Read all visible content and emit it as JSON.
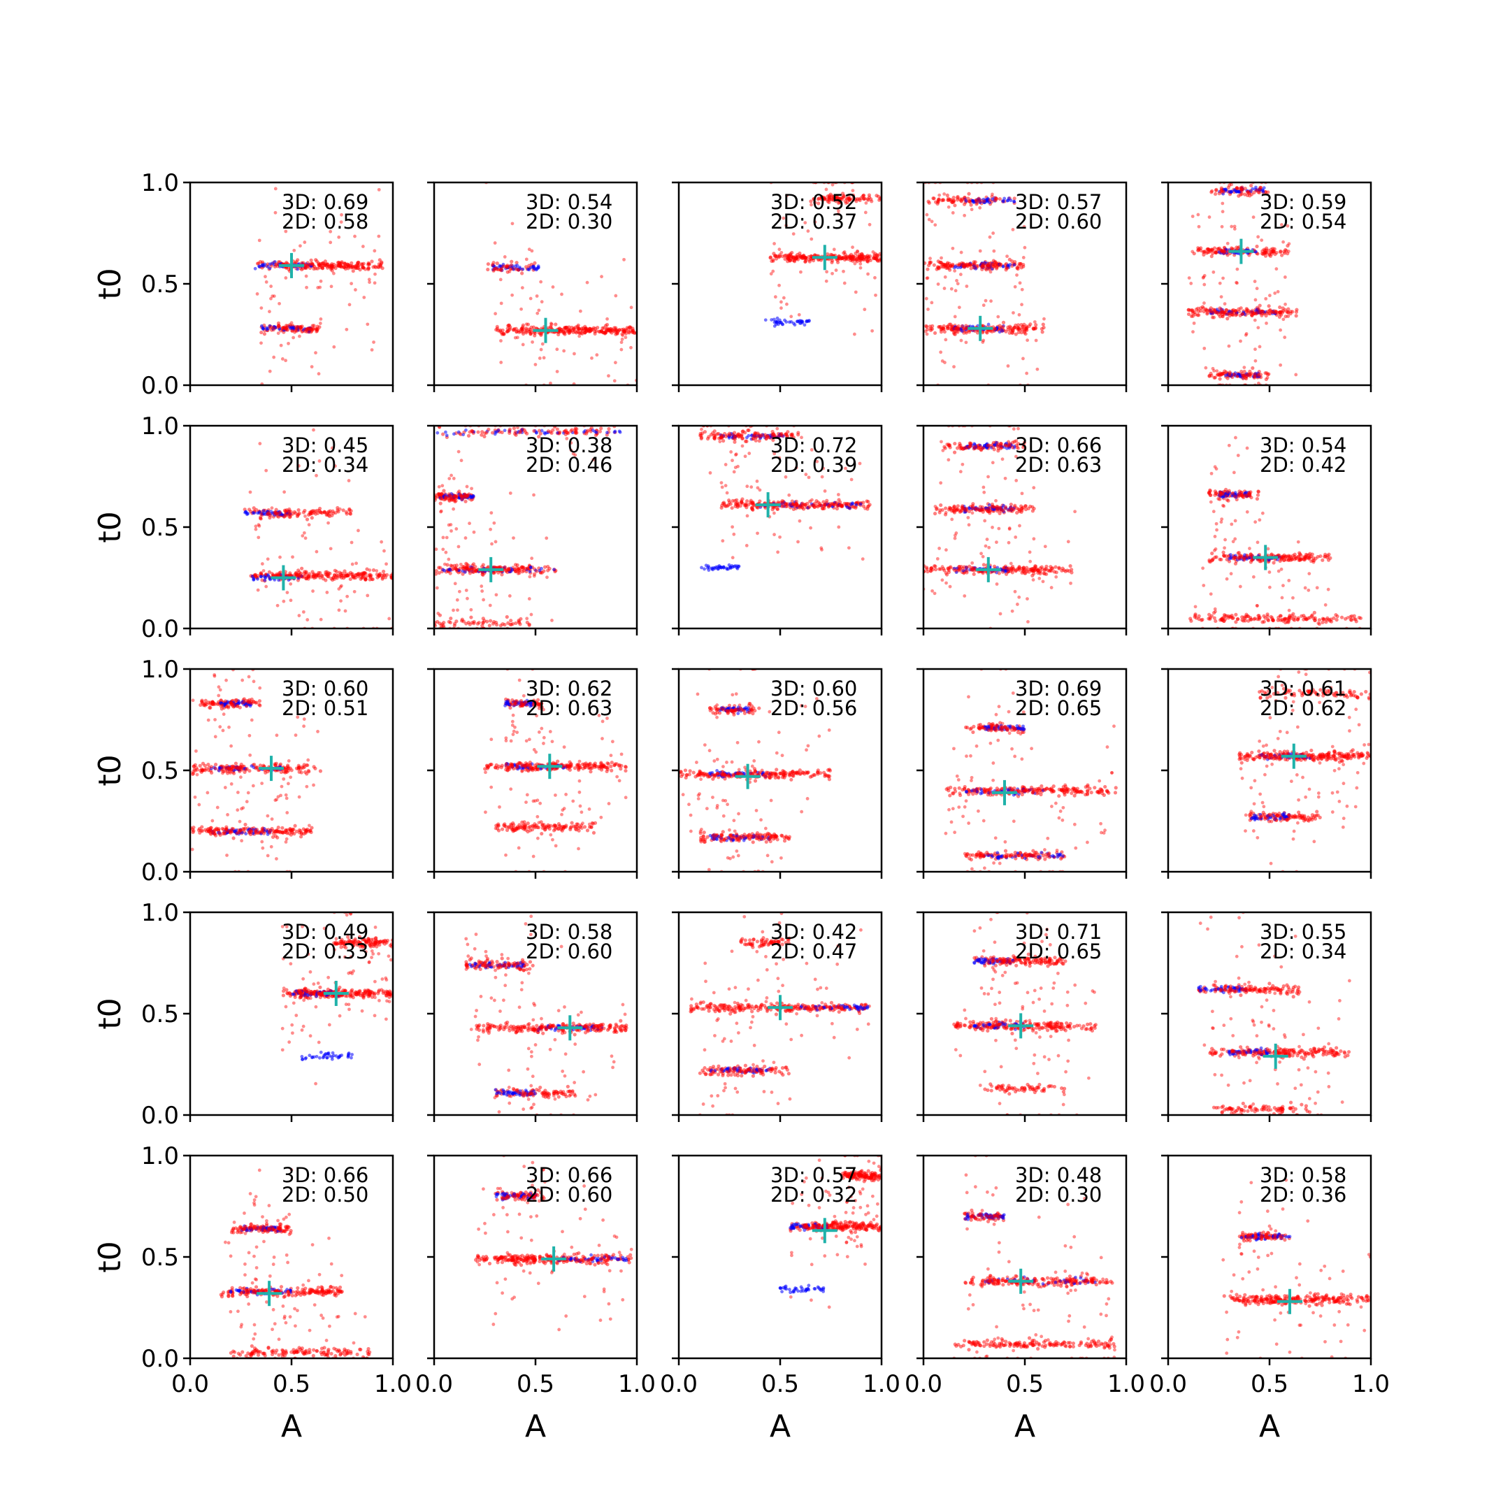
{
  "chart_data": {
    "type": "scatter",
    "layout": "5x5 grid of scatter panels",
    "xlabel": "A",
    "ylabel": "t0",
    "xlim": [
      0,
      1
    ],
    "ylim": [
      0,
      1
    ],
    "x_ticks": [
      "0.0",
      "0.5",
      "1.0"
    ],
    "y_ticks": [
      "0.0",
      "0.5",
      "1.0"
    ],
    "colors": {
      "samples_3d": "#ff0000",
      "samples_2d": "#0000ff",
      "true_marker": "#20b2aa"
    },
    "marker_glyph": "+",
    "panels": [
      {
        "label_3d": "3D: 0.69",
        "label_2d": "2D: 0.58",
        "true": [
          0.5,
          0.59
        ],
        "blobs": [
          {
            "t0": 0.59,
            "a_lo": 0.33,
            "a_hi": 0.95,
            "n": 140
          },
          {
            "t0": 0.28,
            "a_lo": 0.35,
            "a_hi": 0.65,
            "n": 60
          }
        ],
        "blue_blobs": [
          {
            "t0": 0.59,
            "a_lo": 0.32,
            "a_hi": 0.6
          },
          {
            "t0": 0.28,
            "a_lo": 0.35,
            "a_hi": 0.6
          }
        ]
      },
      {
        "label_3d": "3D: 0.54",
        "label_2d": "2D: 0.30",
        "true": [
          0.55,
          0.27
        ],
        "blobs": [
          {
            "t0": 0.27,
            "a_lo": 0.3,
            "a_hi": 1.0,
            "n": 170
          },
          {
            "t0": 0.58,
            "a_lo": 0.25,
            "a_hi": 0.5,
            "n": 30
          }
        ],
        "blue_blobs": [
          {
            "t0": 0.58,
            "a_lo": 0.28,
            "a_hi": 0.52
          }
        ]
      },
      {
        "label_3d": "3D: 0.52",
        "label_2d": "2D: 0.37",
        "true": [
          0.72,
          0.63
        ],
        "blobs": [
          {
            "t0": 0.63,
            "a_lo": 0.45,
            "a_hi": 1.0,
            "n": 150
          },
          {
            "t0": 0.92,
            "a_lo": 0.65,
            "a_hi": 1.0,
            "n": 60
          }
        ],
        "blue_blobs": [
          {
            "t0": 0.31,
            "a_lo": 0.42,
            "a_hi": 0.65
          }
        ]
      },
      {
        "label_3d": "3D: 0.57",
        "label_2d": "2D: 0.60",
        "true": [
          0.28,
          0.28
        ],
        "blobs": [
          {
            "t0": 0.28,
            "a_lo": 0.0,
            "a_hi": 0.6,
            "n": 110
          },
          {
            "t0": 0.59,
            "a_lo": 0.0,
            "a_hi": 0.5,
            "n": 100
          },
          {
            "t0": 0.91,
            "a_lo": 0.0,
            "a_hi": 0.45,
            "n": 50
          }
        ],
        "blue_blobs": [
          {
            "t0": 0.28,
            "a_lo": 0.15,
            "a_hi": 0.4
          },
          {
            "t0": 0.59,
            "a_lo": 0.15,
            "a_hi": 0.45
          },
          {
            "t0": 0.91,
            "a_lo": 0.2,
            "a_hi": 0.45
          }
        ]
      },
      {
        "label_3d": "3D: 0.59",
        "label_2d": "2D: 0.54",
        "true": [
          0.36,
          0.66
        ],
        "blobs": [
          {
            "t0": 0.66,
            "a_lo": 0.1,
            "a_hi": 0.6,
            "n": 80
          },
          {
            "t0": 0.36,
            "a_lo": 0.1,
            "a_hi": 0.65,
            "n": 110
          },
          {
            "t0": 0.05,
            "a_lo": 0.2,
            "a_hi": 0.5,
            "n": 50
          },
          {
            "t0": 0.96,
            "a_lo": 0.2,
            "a_hi": 0.5,
            "n": 40
          }
        ],
        "blue_blobs": [
          {
            "t0": 0.66,
            "a_lo": 0.25,
            "a_hi": 0.45
          },
          {
            "t0": 0.36,
            "a_lo": 0.2,
            "a_hi": 0.55
          },
          {
            "t0": 0.96,
            "a_lo": 0.25,
            "a_hi": 0.48
          },
          {
            "t0": 0.05,
            "a_lo": 0.28,
            "a_hi": 0.45
          }
        ]
      },
      {
        "label_3d": "3D: 0.45",
        "label_2d": "2D: 0.34",
        "true": [
          0.46,
          0.25
        ],
        "blobs": [
          {
            "t0": 0.26,
            "a_lo": 0.3,
            "a_hi": 1.0,
            "n": 150
          },
          {
            "t0": 0.57,
            "a_lo": 0.25,
            "a_hi": 0.8,
            "n": 80
          }
        ],
        "blue_blobs": [
          {
            "t0": 0.57,
            "a_lo": 0.25,
            "a_hi": 0.5
          },
          {
            "t0": 0.25,
            "a_lo": 0.3,
            "a_hi": 0.55
          }
        ]
      },
      {
        "label_3d": "3D: 0.38",
        "label_2d": "2D: 0.46",
        "true": [
          0.28,
          0.29
        ],
        "blobs": [
          {
            "t0": 0.29,
            "a_lo": 0.0,
            "a_hi": 0.6,
            "n": 120
          },
          {
            "t0": 0.65,
            "a_lo": 0.0,
            "a_hi": 0.2,
            "n": 60
          },
          {
            "t0": 0.97,
            "a_lo": 0.0,
            "a_hi": 0.9,
            "n": 60
          },
          {
            "t0": 0.03,
            "a_lo": 0.0,
            "a_hi": 0.5,
            "n": 40
          }
        ],
        "blue_blobs": [
          {
            "t0": 0.29,
            "a_lo": 0.0,
            "a_hi": 0.6
          },
          {
            "t0": 0.97,
            "a_lo": 0.0,
            "a_hi": 0.95
          },
          {
            "t0": 0.65,
            "a_lo": 0.02,
            "a_hi": 0.2
          }
        ]
      },
      {
        "label_3d": "3D: 0.72",
        "label_2d": "2D: 0.39",
        "true": [
          0.44,
          0.61
        ],
        "blobs": [
          {
            "t0": 0.61,
            "a_lo": 0.2,
            "a_hi": 0.95,
            "n": 150
          },
          {
            "t0": 0.95,
            "a_lo": 0.1,
            "a_hi": 0.6,
            "n": 80
          }
        ],
        "blue_blobs": [
          {
            "t0": 0.3,
            "a_lo": 0.1,
            "a_hi": 0.3
          },
          {
            "t0": 0.95,
            "a_lo": 0.2,
            "a_hi": 0.55
          },
          {
            "t0": 0.61,
            "a_lo": 0.4,
            "a_hi": 0.9
          }
        ]
      },
      {
        "label_3d": "3D: 0.66",
        "label_2d": "2D: 0.63",
        "true": [
          0.32,
          0.29
        ],
        "blobs": [
          {
            "t0": 0.29,
            "a_lo": 0.0,
            "a_hi": 0.75,
            "n": 120
          },
          {
            "t0": 0.59,
            "a_lo": 0.05,
            "a_hi": 0.55,
            "n": 90
          },
          {
            "t0": 0.9,
            "a_lo": 0.1,
            "a_hi": 0.5,
            "n": 60
          }
        ],
        "blue_blobs": [
          {
            "t0": 0.29,
            "a_lo": 0.15,
            "a_hi": 0.45
          },
          {
            "t0": 0.59,
            "a_lo": 0.2,
            "a_hi": 0.45
          },
          {
            "t0": 0.9,
            "a_lo": 0.2,
            "a_hi": 0.45
          }
        ]
      },
      {
        "label_3d": "3D: 0.54",
        "label_2d": "2D: 0.42",
        "true": [
          0.48,
          0.35
        ],
        "blobs": [
          {
            "t0": 0.35,
            "a_lo": 0.2,
            "a_hi": 0.8,
            "n": 110
          },
          {
            "t0": 0.05,
            "a_lo": 0.1,
            "a_hi": 0.95,
            "n": 100
          },
          {
            "t0": 0.66,
            "a_lo": 0.2,
            "a_hi": 0.45,
            "n": 50
          }
        ],
        "blue_blobs": [
          {
            "t0": 0.66,
            "a_lo": 0.25,
            "a_hi": 0.4
          },
          {
            "t0": 0.35,
            "a_lo": 0.3,
            "a_hi": 0.55
          }
        ]
      },
      {
        "label_3d": "3D: 0.60",
        "label_2d": "2D: 0.51",
        "true": [
          0.4,
          0.51
        ],
        "blobs": [
          {
            "t0": 0.51,
            "a_lo": 0.0,
            "a_hi": 0.65,
            "n": 110
          },
          {
            "t0": 0.2,
            "a_lo": 0.0,
            "a_hi": 0.6,
            "n": 110
          },
          {
            "t0": 0.83,
            "a_lo": 0.05,
            "a_hi": 0.35,
            "n": 60
          }
        ],
        "blue_blobs": [
          {
            "t0": 0.51,
            "a_lo": 0.1,
            "a_hi": 0.45
          },
          {
            "t0": 0.2,
            "a_lo": 0.1,
            "a_hi": 0.4
          },
          {
            "t0": 0.83,
            "a_lo": 0.15,
            "a_hi": 0.3
          }
        ]
      },
      {
        "label_3d": "3D: 0.62",
        "label_2d": "2D: 0.63",
        "true": [
          0.57,
          0.52
        ],
        "blobs": [
          {
            "t0": 0.52,
            "a_lo": 0.25,
            "a_hi": 0.95,
            "n": 140
          },
          {
            "t0": 0.22,
            "a_lo": 0.3,
            "a_hi": 0.8,
            "n": 80
          },
          {
            "t0": 0.83,
            "a_lo": 0.35,
            "a_hi": 0.55,
            "n": 40
          }
        ],
        "blue_blobs": [
          {
            "t0": 0.52,
            "a_lo": 0.35,
            "a_hi": 0.65
          },
          {
            "t0": 0.83,
            "a_lo": 0.35,
            "a_hi": 0.5
          }
        ]
      },
      {
        "label_3d": "3D: 0.60",
        "label_2d": "2D: 0.56",
        "true": [
          0.34,
          0.47
        ],
        "blobs": [
          {
            "t0": 0.48,
            "a_lo": 0.0,
            "a_hi": 0.75,
            "n": 130
          },
          {
            "t0": 0.17,
            "a_lo": 0.1,
            "a_hi": 0.55,
            "n": 80
          },
          {
            "t0": 0.8,
            "a_lo": 0.15,
            "a_hi": 0.4,
            "n": 40
          }
        ],
        "blue_blobs": [
          {
            "t0": 0.48,
            "a_lo": 0.15,
            "a_hi": 0.45
          },
          {
            "t0": 0.17,
            "a_lo": 0.15,
            "a_hi": 0.45
          },
          {
            "t0": 0.8,
            "a_lo": 0.2,
            "a_hi": 0.35
          }
        ]
      },
      {
        "label_3d": "3D: 0.69",
        "label_2d": "2D: 0.65",
        "true": [
          0.4,
          0.39
        ],
        "blobs": [
          {
            "t0": 0.4,
            "a_lo": 0.1,
            "a_hi": 0.95,
            "n": 130
          },
          {
            "t0": 0.08,
            "a_lo": 0.2,
            "a_hi": 0.7,
            "n": 70
          },
          {
            "t0": 0.71,
            "a_lo": 0.2,
            "a_hi": 0.5,
            "n": 50
          }
        ],
        "blue_blobs": [
          {
            "t0": 0.4,
            "a_lo": 0.2,
            "a_hi": 0.6
          },
          {
            "t0": 0.08,
            "a_lo": 0.3,
            "a_hi": 0.7
          },
          {
            "t0": 0.71,
            "a_lo": 0.3,
            "a_hi": 0.5
          }
        ]
      },
      {
        "label_3d": "3D: 0.61",
        "label_2d": "2D: 0.62",
        "true": [
          0.62,
          0.57
        ],
        "blobs": [
          {
            "t0": 0.57,
            "a_lo": 0.35,
            "a_hi": 1.0,
            "n": 150
          },
          {
            "t0": 0.27,
            "a_lo": 0.4,
            "a_hi": 0.75,
            "n": 60
          },
          {
            "t0": 0.88,
            "a_lo": 0.45,
            "a_hi": 1.0,
            "n": 50
          }
        ],
        "blue_blobs": [
          {
            "t0": 0.27,
            "a_lo": 0.4,
            "a_hi": 0.6
          },
          {
            "t0": 0.57,
            "a_lo": 0.45,
            "a_hi": 0.7
          }
        ]
      },
      {
        "label_3d": "3D: 0.49",
        "label_2d": "2D: 0.33",
        "true": [
          0.72,
          0.6
        ],
        "blobs": [
          {
            "t0": 0.6,
            "a_lo": 0.45,
            "a_hi": 1.0,
            "n": 150
          },
          {
            "t0": 0.85,
            "a_lo": 0.7,
            "a_hi": 1.0,
            "n": 70
          }
        ],
        "blue_blobs": [
          {
            "t0": 0.6,
            "a_lo": 0.5,
            "a_hi": 0.75
          },
          {
            "t0": 0.29,
            "a_lo": 0.55,
            "a_hi": 0.8
          }
        ]
      },
      {
        "label_3d": "3D: 0.58",
        "label_2d": "2D: 0.60",
        "true": [
          0.67,
          0.43
        ],
        "blobs": [
          {
            "t0": 0.43,
            "a_lo": 0.2,
            "a_hi": 0.95,
            "n": 140
          },
          {
            "t0": 0.74,
            "a_lo": 0.15,
            "a_hi": 0.5,
            "n": 60
          },
          {
            "t0": 0.11,
            "a_lo": 0.3,
            "a_hi": 0.7,
            "n": 60
          }
        ],
        "blue_blobs": [
          {
            "t0": 0.74,
            "a_lo": 0.15,
            "a_hi": 0.45
          },
          {
            "t0": 0.43,
            "a_lo": 0.5,
            "a_hi": 0.85
          },
          {
            "t0": 0.11,
            "a_lo": 0.3,
            "a_hi": 0.5
          }
        ]
      },
      {
        "label_3d": "3D: 0.42",
        "label_2d": "2D: 0.47",
        "true": [
          0.5,
          0.53
        ],
        "blobs": [
          {
            "t0": 0.53,
            "a_lo": 0.05,
            "a_hi": 0.95,
            "n": 150
          },
          {
            "t0": 0.22,
            "a_lo": 0.1,
            "a_hi": 0.55,
            "n": 70
          },
          {
            "t0": 0.85,
            "a_lo": 0.3,
            "a_hi": 0.55,
            "n": 40
          }
        ],
        "blue_blobs": [
          {
            "t0": 0.53,
            "a_lo": 0.6,
            "a_hi": 0.95
          },
          {
            "t0": 0.22,
            "a_lo": 0.15,
            "a_hi": 0.45
          }
        ]
      },
      {
        "label_3d": "3D: 0.71",
        "label_2d": "2D: 0.65",
        "true": [
          0.48,
          0.44
        ],
        "blobs": [
          {
            "t0": 0.44,
            "a_lo": 0.15,
            "a_hi": 0.85,
            "n": 130
          },
          {
            "t0": 0.76,
            "a_lo": 0.25,
            "a_hi": 0.7,
            "n": 90
          },
          {
            "t0": 0.13,
            "a_lo": 0.3,
            "a_hi": 0.7,
            "n": 40
          }
        ],
        "blue_blobs": [
          {
            "t0": 0.76,
            "a_lo": 0.25,
            "a_hi": 0.45
          },
          {
            "t0": 0.44,
            "a_lo": 0.25,
            "a_hi": 0.5
          }
        ]
      },
      {
        "label_3d": "3D: 0.55",
        "label_2d": "2D: 0.34",
        "true": [
          0.53,
          0.29
        ],
        "blobs": [
          {
            "t0": 0.31,
            "a_lo": 0.2,
            "a_hi": 0.9,
            "n": 120
          },
          {
            "t0": 0.62,
            "a_lo": 0.15,
            "a_hi": 0.65,
            "n": 80
          },
          {
            "t0": 0.03,
            "a_lo": 0.2,
            "a_hi": 0.7,
            "n": 50
          }
        ],
        "blue_blobs": [
          {
            "t0": 0.62,
            "a_lo": 0.15,
            "a_hi": 0.4
          },
          {
            "t0": 0.31,
            "a_lo": 0.3,
            "a_hi": 0.5
          }
        ]
      },
      {
        "label_3d": "3D: 0.66",
        "label_2d": "2D: 0.50",
        "true": [
          0.39,
          0.32
        ],
        "blobs": [
          {
            "t0": 0.33,
            "a_lo": 0.15,
            "a_hi": 0.75,
            "n": 120
          },
          {
            "t0": 0.64,
            "a_lo": 0.2,
            "a_hi": 0.5,
            "n": 70
          },
          {
            "t0": 0.03,
            "a_lo": 0.2,
            "a_hi": 0.9,
            "n": 80
          }
        ],
        "blue_blobs": [
          {
            "t0": 0.33,
            "a_lo": 0.2,
            "a_hi": 0.5
          },
          {
            "t0": 0.64,
            "a_lo": 0.25,
            "a_hi": 0.45
          }
        ]
      },
      {
        "label_3d": "3D: 0.66",
        "label_2d": "2D: 0.60",
        "true": [
          0.59,
          0.49
        ],
        "blobs": [
          {
            "t0": 0.49,
            "a_lo": 0.2,
            "a_hi": 0.98,
            "n": 160
          },
          {
            "t0": 0.8,
            "a_lo": 0.3,
            "a_hi": 0.55,
            "n": 50
          }
        ],
        "blue_blobs": [
          {
            "t0": 0.8,
            "a_lo": 0.3,
            "a_hi": 0.5
          },
          {
            "t0": 0.49,
            "a_lo": 0.6,
            "a_hi": 0.95
          }
        ]
      },
      {
        "label_3d": "3D: 0.57",
        "label_2d": "2D: 0.32",
        "true": [
          0.72,
          0.63
        ],
        "blobs": [
          {
            "t0": 0.65,
            "a_lo": 0.55,
            "a_hi": 1.0,
            "n": 140
          },
          {
            "t0": 0.9,
            "a_lo": 0.8,
            "a_hi": 1.0,
            "n": 80
          }
        ],
        "blue_blobs": [
          {
            "t0": 0.65,
            "a_lo": 0.55,
            "a_hi": 0.75
          },
          {
            "t0": 0.34,
            "a_lo": 0.5,
            "a_hi": 0.72
          }
        ]
      },
      {
        "label_3d": "3D: 0.48",
        "label_2d": "2D: 0.30",
        "true": [
          0.48,
          0.38
        ],
        "blobs": [
          {
            "t0": 0.38,
            "a_lo": 0.2,
            "a_hi": 0.95,
            "n": 120
          },
          {
            "t0": 0.07,
            "a_lo": 0.15,
            "a_hi": 0.95,
            "n": 100
          },
          {
            "t0": 0.7,
            "a_lo": 0.2,
            "a_hi": 0.4,
            "n": 40
          }
        ],
        "blue_blobs": [
          {
            "t0": 0.7,
            "a_lo": 0.2,
            "a_hi": 0.4
          },
          {
            "t0": 0.38,
            "a_lo": 0.3,
            "a_hi": 0.85
          }
        ]
      },
      {
        "label_3d": "3D: 0.58",
        "label_2d": "2D: 0.36",
        "true": [
          0.6,
          0.28
        ],
        "blobs": [
          {
            "t0": 0.29,
            "a_lo": 0.25,
            "a_hi": 1.0,
            "n": 150
          },
          {
            "t0": 0.6,
            "a_lo": 0.35,
            "a_hi": 0.6,
            "n": 50
          }
        ],
        "blue_blobs": [
          {
            "t0": 0.6,
            "a_lo": 0.35,
            "a_hi": 0.6
          }
        ]
      }
    ]
  }
}
